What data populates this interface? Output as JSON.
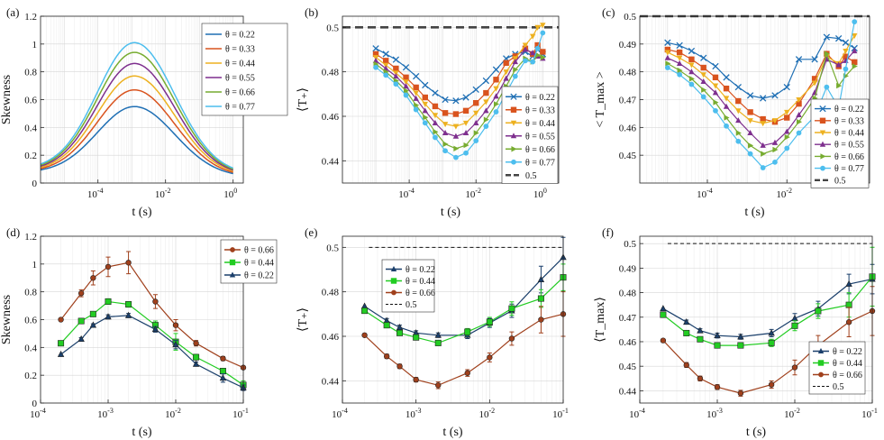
{
  "colors": {
    "c022": "#1f6fb4",
    "c033": "#d9531e",
    "c044": "#edb120",
    "c055": "#7e2f8e",
    "c066": "#77ac30",
    "c077": "#4dbeee",
    "dash": "#444444",
    "brown": "#a0401c",
    "green": "#22cc22",
    "navy": "#1a3f6b"
  },
  "chart_data": [
    {
      "id": "a",
      "panel_label": "(a)",
      "type": "line",
      "xscale": "log",
      "xlim": [
        2e-06,
        2
      ],
      "ylim": [
        0,
        1.2
      ],
      "xticks": [
        {
          "v": 0.0001,
          "t": "10",
          "e": "-4"
        },
        {
          "v": 0.01,
          "t": "10",
          "e": "-2"
        },
        {
          "v": 1,
          "t": "10",
          "e": "0"
        }
      ],
      "yticks": [
        {
          "v": 0,
          "t": "0"
        },
        {
          "v": 0.2,
          "t": "0.2"
        },
        {
          "v": 0.4,
          "t": "0.4"
        },
        {
          "v": 0.6,
          "t": "0.6"
        },
        {
          "v": 0.8,
          "t": "0.8"
        },
        {
          "v": 1,
          "t": "1"
        },
        {
          "v": 1.2,
          "t": "1.2"
        }
      ],
      "xlabel": "t (s)",
      "ylabel": "Skewness",
      "legend_position": "top-right",
      "series": [
        {
          "name": "θ = 0.22",
          "color": "c022",
          "peak": 0.55,
          "base": 0.075,
          "end": 0.043
        },
        {
          "name": "θ = 0.33",
          "color": "c033",
          "peak": 0.67,
          "base": 0.08,
          "end": 0.046
        },
        {
          "name": "θ = 0.44",
          "color": "c044",
          "peak": 0.77,
          "base": 0.085,
          "end": 0.05
        },
        {
          "name": "θ = 0.55",
          "color": "c055",
          "peak": 0.86,
          "base": 0.09,
          "end": 0.053
        },
        {
          "name": "θ = 0.66",
          "color": "c066",
          "peak": 0.94,
          "base": 0.095,
          "end": 0.056
        },
        {
          "name": "θ = 0.77",
          "color": "c077",
          "peak": 1.01,
          "base": 0.1,
          "end": 0.06
        }
      ],
      "smooth": {
        "x_peak": 0.0012,
        "x_start": 2e-06,
        "x_end": 1
      }
    },
    {
      "id": "b",
      "panel_label": "(b)",
      "type": "line",
      "xscale": "log",
      "xlim": [
        1e-06,
        3
      ],
      "ylim": [
        0.43,
        0.505
      ],
      "xticks": [
        {
          "v": 0.0001,
          "t": "10",
          "e": "-4"
        },
        {
          "v": 0.01,
          "t": "10",
          "e": "-2"
        },
        {
          "v": 1,
          "t": "10",
          "e": "0"
        }
      ],
      "yticks": [
        {
          "v": 0.44,
          "t": "0.44"
        },
        {
          "v": 0.46,
          "t": "0.46"
        },
        {
          "v": 0.48,
          "t": "0.48"
        },
        {
          "v": 0.5,
          "t": "0.5"
        }
      ],
      "xlabel": "t (s)",
      "ylabel": "⟨T₊⟩",
      "legend_position": "bottom-right",
      "x": [
        1e-05,
        2e-05,
        4e-05,
        8e-05,
        0.00016,
        0.0003,
        0.0006,
        0.0012,
        0.0025,
        0.005,
        0.01,
        0.02,
        0.04,
        0.08,
        0.15,
        0.3,
        0.5,
        0.7,
        1
      ],
      "series": [
        {
          "name": "θ = 0.22",
          "color": "c022",
          "marker": "x",
          "values": [
            0.4905,
            0.488,
            0.4855,
            0.482,
            0.478,
            0.474,
            0.4705,
            0.4675,
            0.467,
            0.4685,
            0.472,
            0.476,
            0.481,
            0.486,
            0.488,
            0.489,
            0.487,
            0.49,
            0.488
          ]
        },
        {
          "name": "θ = 0.33",
          "color": "c033",
          "marker": "square",
          "values": [
            0.488,
            0.485,
            0.4815,
            0.4775,
            0.473,
            0.4685,
            0.4645,
            0.4615,
            0.461,
            0.4625,
            0.466,
            0.4705,
            0.4765,
            0.484,
            0.487,
            0.4905,
            0.488,
            0.492,
            0.489
          ]
        },
        {
          "name": "θ = 0.44",
          "color": "c044",
          "marker": "triangle-down",
          "values": [
            0.4865,
            0.483,
            0.4795,
            0.4755,
            0.4705,
            0.4655,
            0.4605,
            0.4565,
            0.4555,
            0.457,
            0.4615,
            0.4665,
            0.4725,
            0.48,
            0.486,
            0.492,
            0.496,
            0.5,
            0.501
          ]
        },
        {
          "name": "θ = 0.55",
          "color": "c055",
          "marker": "triangle-up",
          "values": [
            0.485,
            0.4815,
            0.478,
            0.4735,
            0.468,
            0.4625,
            0.457,
            0.4525,
            0.451,
            0.4525,
            0.457,
            0.4625,
            0.469,
            0.477,
            0.4845,
            0.49,
            0.4885,
            0.487,
            0.486
          ]
        },
        {
          "name": "θ = 0.66",
          "color": "c066",
          "marker": "triangle-right",
          "values": [
            0.4835,
            0.48,
            0.476,
            0.4715,
            0.465,
            0.4595,
            0.453,
            0.4475,
            0.4455,
            0.447,
            0.4525,
            0.4585,
            0.4655,
            0.4735,
            0.481,
            0.486,
            0.4845,
            0.4875,
            0.4865
          ]
        },
        {
          "name": "θ = 0.77",
          "color": "c077",
          "marker": "circle",
          "values": [
            0.482,
            0.4785,
            0.4745,
            0.4695,
            0.463,
            0.457,
            0.4505,
            0.4445,
            0.4415,
            0.4435,
            0.449,
            0.4555,
            0.462,
            0.4705,
            0.478,
            0.485,
            0.4845,
            0.4905,
            0.4975
          ]
        }
      ],
      "hline": {
        "value": 0.5,
        "label": "0.5",
        "style": "thick-dash"
      }
    },
    {
      "id": "c",
      "panel_label": "(c)",
      "type": "line",
      "xscale": "log",
      "xlim": [
        2e-06,
        1.2
      ],
      "ylim": [
        0.44,
        0.5
      ],
      "xticks": [
        {
          "v": 0.0001,
          "t": "10",
          "e": "-4"
        },
        {
          "v": 0.01,
          "t": "10",
          "e": "-2"
        }
      ],
      "yticks": [
        {
          "v": 0.45,
          "t": "0.45"
        },
        {
          "v": 0.46,
          "t": "0.46"
        },
        {
          "v": 0.47,
          "t": "0.47"
        },
        {
          "v": 0.48,
          "t": "0.48"
        },
        {
          "v": 0.49,
          "t": "0.49"
        },
        {
          "v": 0.5,
          "t": "0.5"
        }
      ],
      "xlabel": "t (s)",
      "ylabel": "< T_max >",
      "legend_position": "bottom-right",
      "x": [
        1e-05,
        2e-05,
        4e-05,
        8e-05,
        0.00016,
        0.0003,
        0.0006,
        0.0012,
        0.0025,
        0.005,
        0.01,
        0.02,
        0.05,
        0.1,
        0.2,
        0.3,
        0.5
      ],
      "series": [
        {
          "name": "θ = 0.22",
          "color": "c022",
          "marker": "x",
          "values": [
            0.4905,
            0.4895,
            0.4875,
            0.485,
            0.482,
            0.478,
            0.4745,
            0.4715,
            0.4705,
            0.4715,
            0.4745,
            0.4845,
            0.4845,
            0.4925,
            0.492,
            0.4905,
            0.4885
          ]
        },
        {
          "name": "θ = 0.33",
          "color": "c033",
          "marker": "square",
          "values": [
            0.488,
            0.487,
            0.4845,
            0.4815,
            0.478,
            0.474,
            0.4695,
            0.4655,
            0.463,
            0.462,
            0.4635,
            0.4685,
            0.4775,
            0.4865,
            0.482,
            0.4855,
            0.4835
          ]
        },
        {
          "name": "θ = 0.44",
          "color": "c044",
          "marker": "triangle-down",
          "values": [
            0.487,
            0.485,
            0.4825,
            0.479,
            0.475,
            0.4705,
            0.466,
            0.4625,
            0.4615,
            0.4625,
            0.4655,
            0.47,
            0.476,
            0.4855,
            0.483,
            0.4875,
            0.493
          ]
        },
        {
          "name": "θ = 0.55",
          "color": "c055",
          "marker": "triangle-up",
          "values": [
            0.485,
            0.483,
            0.48,
            0.4765,
            0.4725,
            0.4675,
            0.4625,
            0.458,
            0.4535,
            0.4545,
            0.4585,
            0.4645,
            0.4725,
            0.4845,
            0.4825,
            0.484,
            0.4875
          ]
        },
        {
          "name": "θ = 0.66",
          "color": "c066",
          "marker": "triangle-right",
          "values": [
            0.483,
            0.4805,
            0.4775,
            0.4735,
            0.469,
            0.4635,
            0.458,
            0.4535,
            0.4505,
            0.452,
            0.4565,
            0.462,
            0.4705,
            0.4865,
            0.475,
            0.4785,
            0.482
          ]
        },
        {
          "name": "θ = 0.77",
          "color": "c077",
          "marker": "circle",
          "values": [
            0.4815,
            0.479,
            0.4755,
            0.471,
            0.466,
            0.4605,
            0.455,
            0.4505,
            0.4455,
            0.4475,
            0.4525,
            0.458,
            0.464,
            0.4745,
            0.467,
            0.481,
            0.498
          ]
        }
      ],
      "hline": {
        "value": 0.5,
        "label": "0.5",
        "style": "thick-dash"
      }
    },
    {
      "id": "d",
      "panel_label": "(d)",
      "type": "line",
      "xscale": "log",
      "xlim": [
        0.0001,
        0.1
      ],
      "ylim": [
        0,
        1.2
      ],
      "xticks": [
        {
          "v": 0.0001,
          "t": "10",
          "e": "-4"
        },
        {
          "v": 0.001,
          "t": "10",
          "e": "-3"
        },
        {
          "v": 0.01,
          "t": "10",
          "e": "-2"
        },
        {
          "v": 0.1,
          "t": "10",
          "e": "-1"
        }
      ],
      "yticks": [
        {
          "v": 0,
          "t": "0"
        },
        {
          "v": 0.2,
          "t": "0.2"
        },
        {
          "v": 0.4,
          "t": "0.4"
        },
        {
          "v": 0.6,
          "t": "0.6"
        },
        {
          "v": 0.8,
          "t": "0.8"
        },
        {
          "v": 1,
          "t": "1"
        },
        {
          "v": 1.2,
          "t": "1.2"
        }
      ],
      "xlabel": "t (s)",
      "ylabel": "Skewness",
      "legend_position": "top-right",
      "x": [
        0.0002,
        0.0004,
        0.0006,
        0.001,
        0.002,
        0.005,
        0.01,
        0.02,
        0.05,
        0.1
      ],
      "series": [
        {
          "name": "θ = 0.66",
          "color": "brown",
          "marker": "circle",
          "values": [
            0.6,
            0.79,
            0.9,
            0.98,
            1.01,
            0.73,
            0.56,
            0.43,
            0.32,
            0.255
          ],
          "errors": [
            0,
            0.025,
            0.05,
            0.07,
            0.08,
            0.05,
            0.04,
            0.02,
            0.015,
            0.01
          ]
        },
        {
          "name": "θ = 0.44",
          "color": "green",
          "marker": "square",
          "values": [
            0.43,
            0.59,
            0.64,
            0.73,
            0.71,
            0.56,
            0.44,
            0.33,
            0.23,
            0.13
          ],
          "errors": [
            0,
            0.01,
            0.015,
            0.02,
            0.02,
            0.03,
            0.06,
            0.02,
            0.02,
            0.03
          ]
        },
        {
          "name": "θ = 0.22",
          "color": "navy",
          "marker": "triangle-up",
          "values": [
            0.35,
            0.46,
            0.56,
            0.62,
            0.63,
            0.53,
            0.42,
            0.28,
            0.18,
            0.11
          ],
          "errors": [
            0,
            0.01,
            0.01,
            0.015,
            0.015,
            0.02,
            0.03,
            0.015,
            0.03,
            0.02
          ]
        }
      ]
    },
    {
      "id": "e",
      "panel_label": "(e)",
      "type": "line",
      "xscale": "log",
      "xlim": [
        0.0001,
        0.1
      ],
      "ylim": [
        0.43,
        0.505
      ],
      "xticks": [
        {
          "v": 0.0001,
          "t": "10",
          "e": "-4"
        },
        {
          "v": 0.001,
          "t": "10",
          "e": "-3"
        },
        {
          "v": 0.01,
          "t": "10",
          "e": "-2"
        },
        {
          "v": 0.1,
          "t": "10",
          "e": "-1"
        }
      ],
      "yticks": [
        {
          "v": 0.44,
          "t": "0.44"
        },
        {
          "v": 0.46,
          "t": "0.46"
        },
        {
          "v": 0.48,
          "t": "0.48"
        },
        {
          "v": 0.5,
          "t": "0.5"
        }
      ],
      "xlabel": "t (s)",
      "ylabel": "⟨T₊⟩",
      "legend_position": "middle-left",
      "x": [
        0.0002,
        0.0004,
        0.0006,
        0.001,
        0.002,
        0.005,
        0.01,
        0.02,
        0.05,
        0.1
      ],
      "series": [
        {
          "name": "θ = 0.22",
          "color": "navy",
          "marker": "triangle-up",
          "values": [
            0.4735,
            0.467,
            0.464,
            0.4615,
            0.4605,
            0.4605,
            0.466,
            0.4715,
            0.4855,
            0.4955
          ],
          "errors": [
            0,
            0.001,
            0.001,
            0.001,
            0.001,
            0.0015,
            0.002,
            0.003,
            0.006,
            0.009
          ]
        },
        {
          "name": "θ = 0.44",
          "color": "green",
          "marker": "square",
          "values": [
            0.4715,
            0.465,
            0.4615,
            0.4595,
            0.457,
            0.462,
            0.4665,
            0.4725,
            0.477,
            0.4865
          ],
          "errors": [
            0,
            0.001,
            0.001,
            0.001,
            0.001,
            0.0015,
            0.002,
            0.003,
            0.004,
            0.006
          ]
        },
        {
          "name": "θ = 0.66",
          "color": "brown",
          "marker": "circle",
          "values": [
            0.4605,
            0.451,
            0.4465,
            0.4405,
            0.438,
            0.4435,
            0.4505,
            0.459,
            0.4675,
            0.47
          ],
          "errors": [
            0,
            0.001,
            0.001,
            0.001,
            0.0015,
            0.0015,
            0.002,
            0.003,
            0.006,
            0.01
          ]
        }
      ],
      "hline": {
        "value": 0.5,
        "label": "0.5",
        "style": "thin-dash"
      }
    },
    {
      "id": "f",
      "panel_label": "(f)",
      "type": "line",
      "xscale": "log",
      "xlim": [
        0.0001,
        0.1
      ],
      "ylim": [
        0.435,
        0.503
      ],
      "xticks": [
        {
          "v": 0.0001,
          "t": "10",
          "e": "-4"
        },
        {
          "v": 0.001,
          "t": "10",
          "e": "-3"
        },
        {
          "v": 0.01,
          "t": "10",
          "e": "-2"
        },
        {
          "v": 0.1,
          "t": "10",
          "e": "-1"
        }
      ],
      "yticks": [
        {
          "v": 0.44,
          "t": "0.44"
        },
        {
          "v": 0.45,
          "t": "0.45"
        },
        {
          "v": 0.46,
          "t": "0.46"
        },
        {
          "v": 0.47,
          "t": "0.47"
        },
        {
          "v": 0.48,
          "t": "0.48"
        },
        {
          "v": 0.49,
          "t": "0.49"
        },
        {
          "v": 0.5,
          "t": "0.5"
        }
      ],
      "xlabel": "t (s)",
      "ylabel": "⟨T_max⟩",
      "legend_position": "bottom-right",
      "x": [
        0.0002,
        0.0004,
        0.0006,
        0.001,
        0.002,
        0.005,
        0.01,
        0.02,
        0.05,
        0.1
      ],
      "series": [
        {
          "name": "θ = 0.22",
          "color": "navy",
          "marker": "triangle-up",
          "values": [
            0.4735,
            0.468,
            0.4645,
            0.4625,
            0.462,
            0.4635,
            0.4695,
            0.4735,
            0.4835,
            0.4855
          ],
          "errors": [
            0,
            0.0008,
            0.0008,
            0.001,
            0.001,
            0.0015,
            0.002,
            0.003,
            0.004,
            0.006
          ]
        },
        {
          "name": "θ = 0.44",
          "color": "green",
          "marker": "square",
          "values": [
            0.471,
            0.4635,
            0.461,
            0.4585,
            0.4585,
            0.4595,
            0.4665,
            0.4725,
            0.475,
            0.4865
          ],
          "errors": [
            0,
            0.0008,
            0.0008,
            0.001,
            0.001,
            0.0015,
            0.002,
            0.003,
            0.005,
            0.012
          ]
        },
        {
          "name": "θ = 0.66",
          "color": "brown",
          "marker": "circle",
          "values": [
            0.4605,
            0.4505,
            0.445,
            0.4415,
            0.439,
            0.4425,
            0.4495,
            0.4585,
            0.468,
            0.4725
          ],
          "errors": [
            0,
            0.001,
            0.001,
            0.001,
            0.0012,
            0.0015,
            0.003,
            0.004,
            0.006,
            0.01
          ]
        }
      ],
      "hline": {
        "value": 0.5,
        "label": "0.5",
        "style": "thin-dash"
      }
    }
  ]
}
